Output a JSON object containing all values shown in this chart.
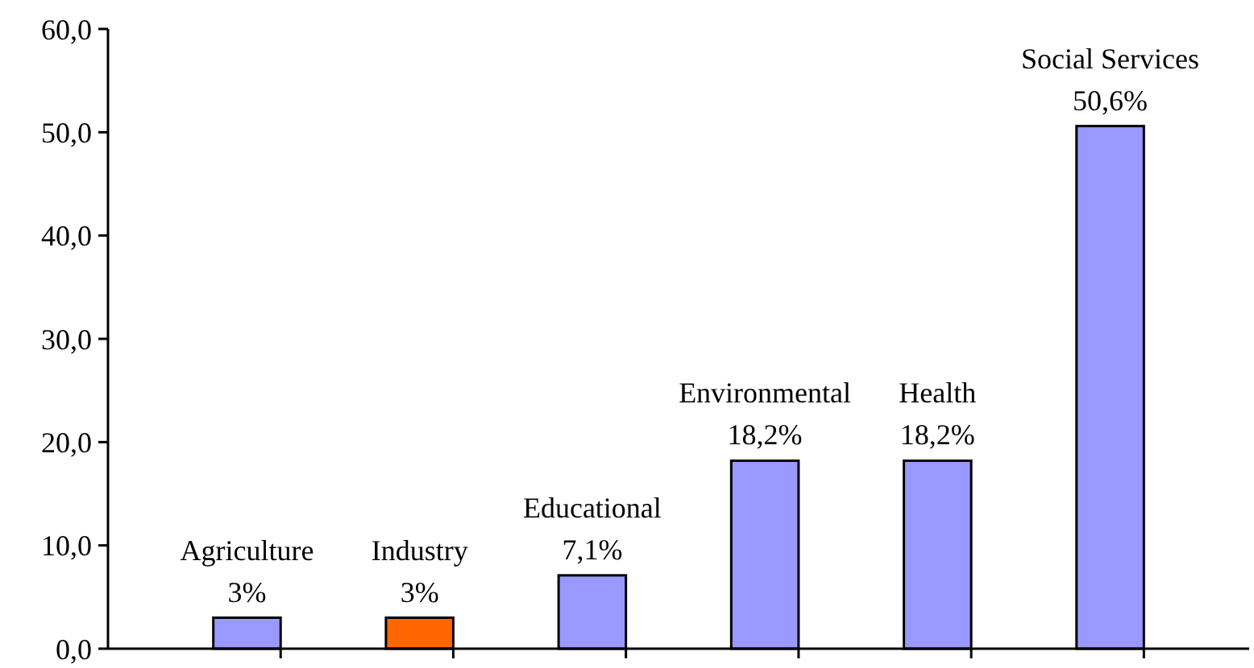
{
  "chart_data": {
    "type": "bar",
    "categories": [
      "Agriculture",
      "Industry",
      "Educational",
      "Environmental",
      "Health",
      "Social Services"
    ],
    "values": [
      3,
      3,
      7.1,
      18.2,
      18.2,
      50.6
    ],
    "colors": [
      "#9999ff",
      "#ff6600",
      "#9999ff",
      "#9999ff",
      "#9999ff",
      "#9999ff"
    ],
    "value_labels": [
      "3%",
      "3%",
      "7,1%",
      "18,2%",
      "18,2%",
      "50,6%"
    ],
    "ylim": [
      0,
      60
    ],
    "yticks": [
      {
        "value": 0,
        "label": "0,0"
      },
      {
        "value": 10,
        "label": "10,0"
      },
      {
        "value": 20,
        "label": "20,0"
      },
      {
        "value": 30,
        "label": "30,0"
      },
      {
        "value": 40,
        "label": "40,0"
      },
      {
        "value": 50,
        "label": "50,0"
      },
      {
        "value": 60,
        "label": "60,0"
      }
    ],
    "grid": false
  }
}
